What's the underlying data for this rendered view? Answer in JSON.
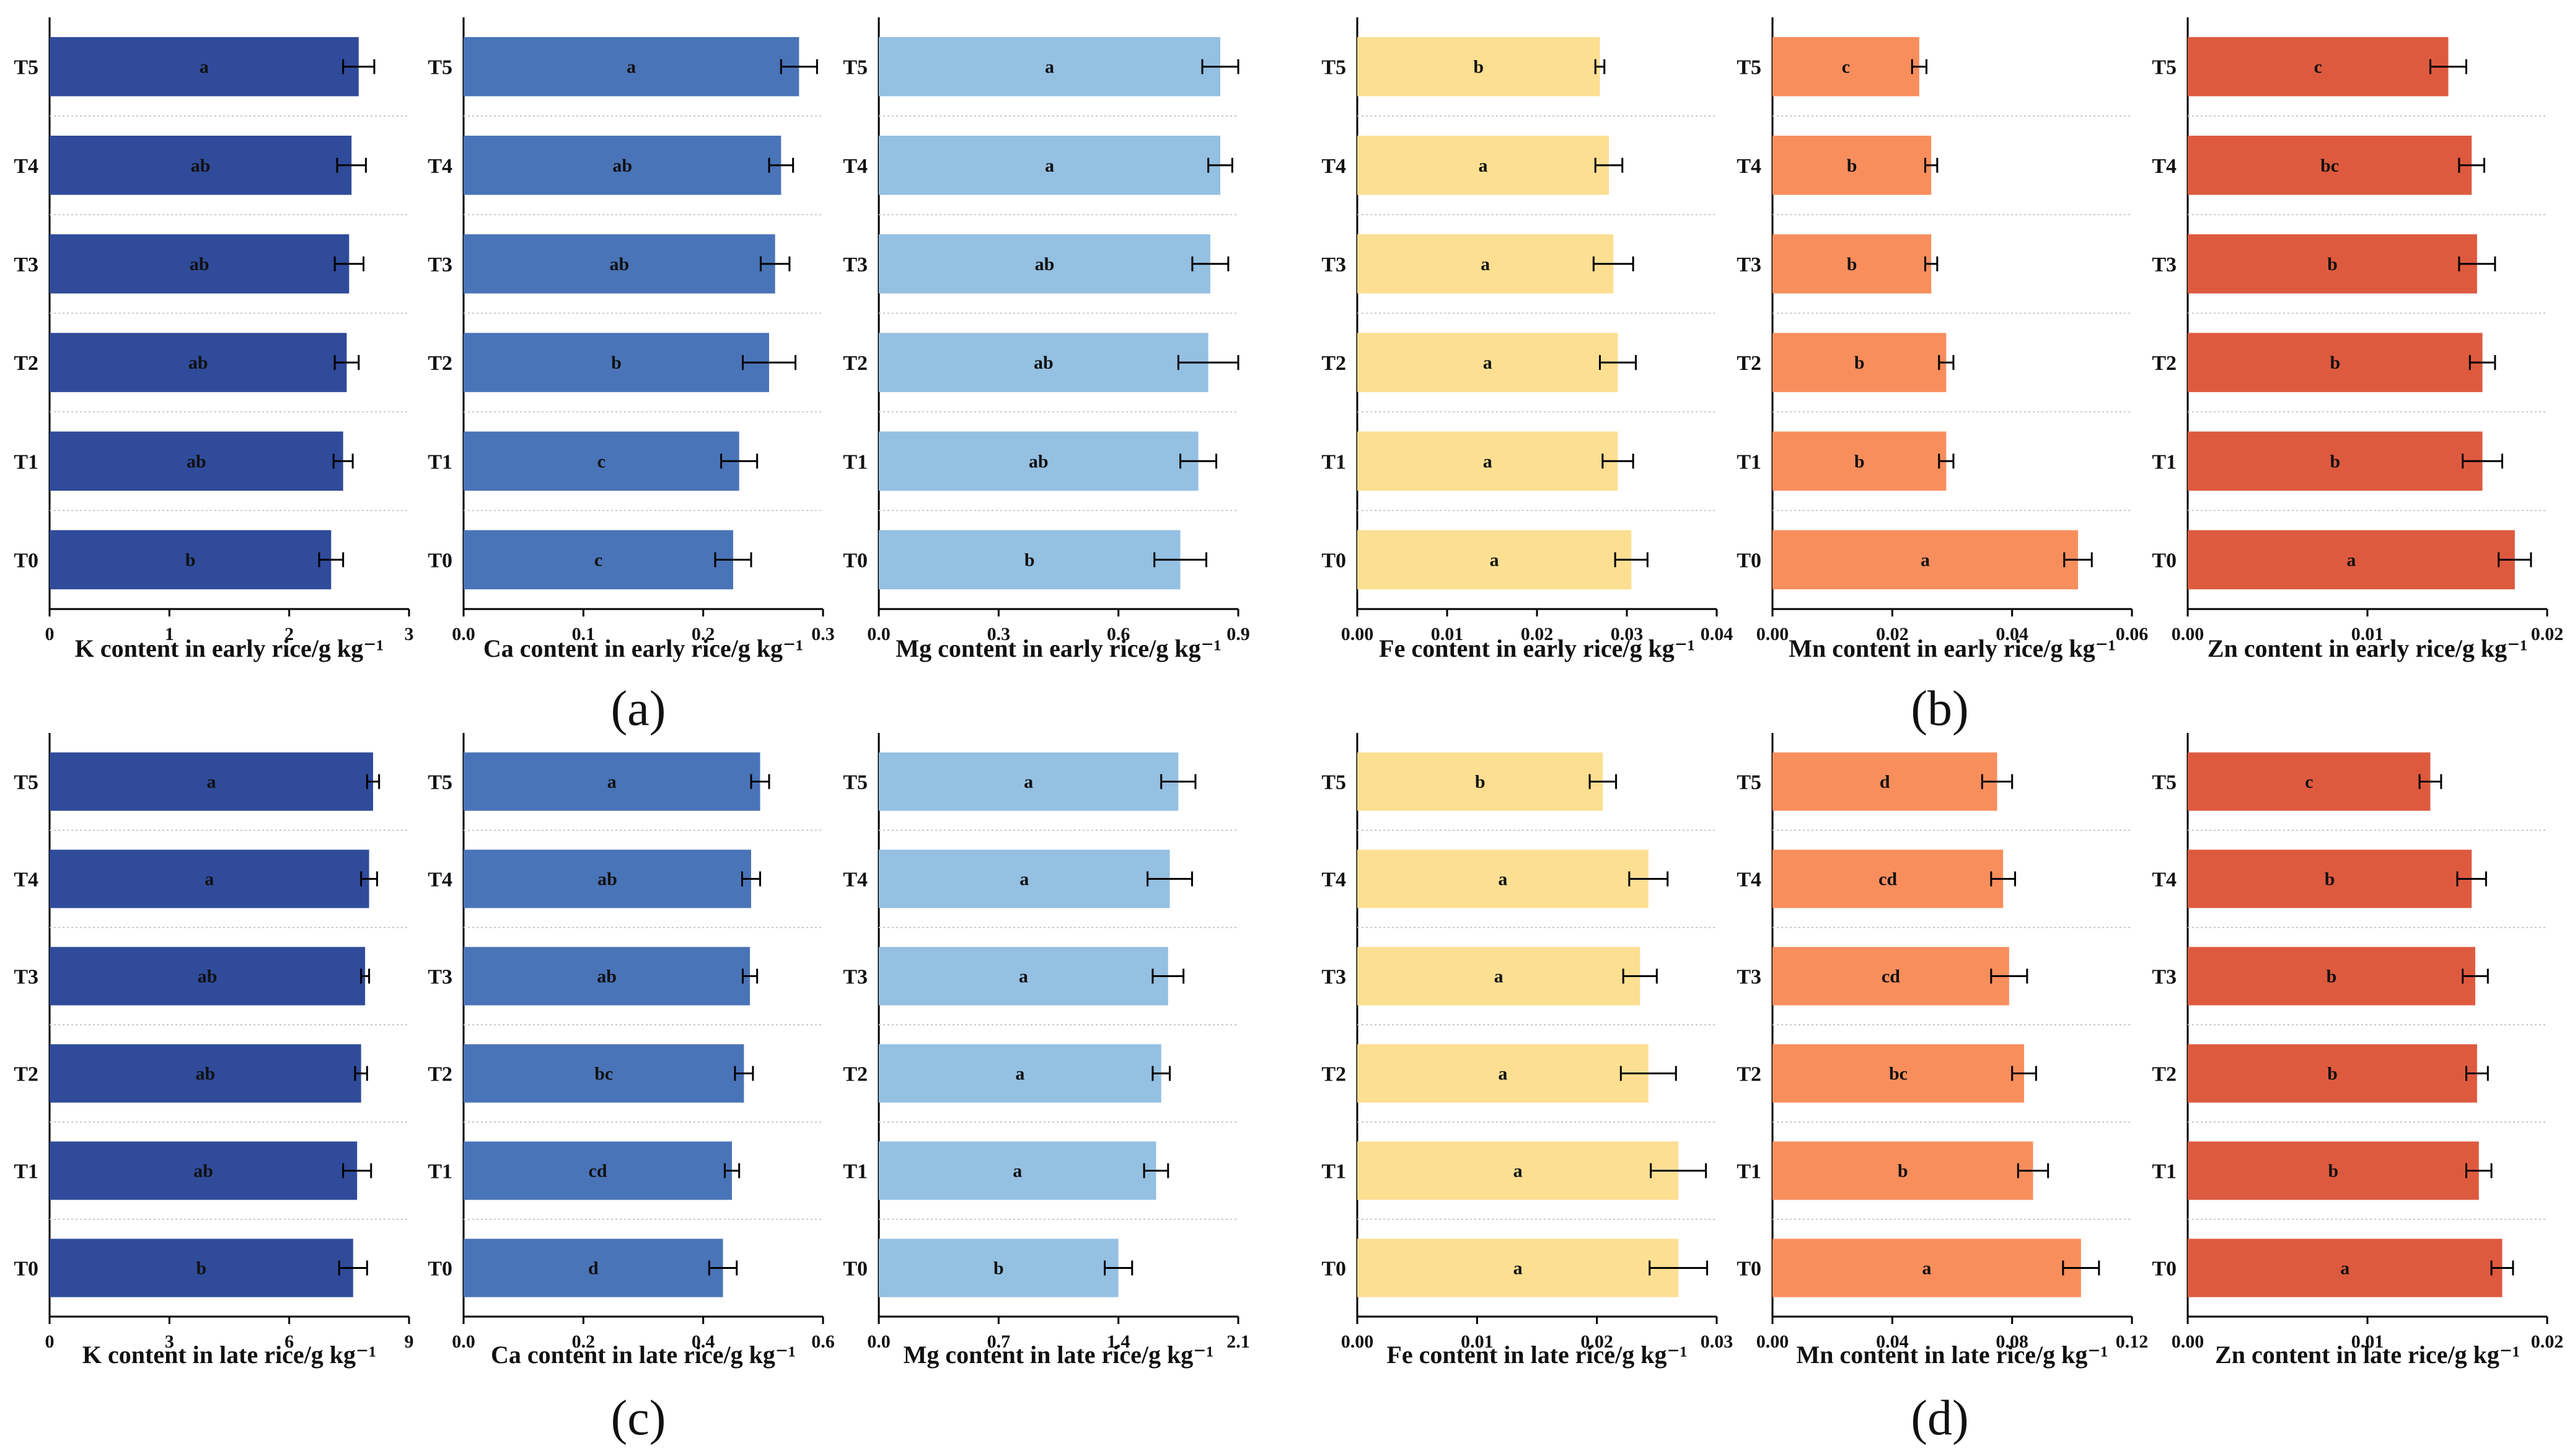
{
  "chart_data": [
    {
      "type": "bar",
      "orientation": "horizontal",
      "panel": "a",
      "title": "",
      "xlabel": "K content in early rice/g kg⁻¹",
      "ylabel": "",
      "categories": [
        "T5",
        "T4",
        "T3",
        "T2",
        "T1",
        "T0"
      ],
      "values": [
        2.58,
        2.52,
        2.5,
        2.48,
        2.45,
        2.35
      ],
      "errors": [
        0.13,
        0.12,
        0.12,
        0.1,
        0.08,
        0.1
      ],
      "letters": [
        "a",
        "ab",
        "ab",
        "ab",
        "ab",
        "b"
      ],
      "xlim": [
        0,
        3
      ],
      "xticks": [
        "0",
        "1",
        "2",
        "3"
      ],
      "color": "#2f4b9a"
    },
    {
      "type": "bar",
      "orientation": "horizontal",
      "panel": "a",
      "title": "",
      "xlabel": "Ca content in early rice/g kg⁻¹",
      "ylabel": "",
      "categories": [
        "T5",
        "T4",
        "T3",
        "T2",
        "T1",
        "T0"
      ],
      "values": [
        0.28,
        0.265,
        0.26,
        0.255,
        0.23,
        0.225
      ],
      "errors": [
        0.015,
        0.01,
        0.012,
        0.022,
        0.015,
        0.015
      ],
      "letters": [
        "a",
        "ab",
        "ab",
        "b",
        "c",
        "c"
      ],
      "xlim": [
        0,
        0.3
      ],
      "xticks": [
        "0.0",
        "0.1",
        "0.2",
        "0.3"
      ],
      "color": "#4a74b8"
    },
    {
      "type": "bar",
      "orientation": "horizontal",
      "panel": "a",
      "title": "",
      "xlabel": "Mg content in early rice/g kg⁻¹",
      "ylabel": "",
      "categories": [
        "T5",
        "T4",
        "T3",
        "T2",
        "T1",
        "T0"
      ],
      "values": [
        0.855,
        0.855,
        0.83,
        0.825,
        0.8,
        0.755
      ],
      "errors": [
        0.045,
        0.03,
        0.045,
        0.075,
        0.045,
        0.065
      ],
      "letters": [
        "a",
        "a",
        "ab",
        "ab",
        "ab",
        "b"
      ],
      "xlim": [
        0,
        0.9
      ],
      "xticks": [
        "0.0",
        "0.3",
        "0.6",
        "0.9"
      ],
      "color": "#94c0e2"
    },
    {
      "type": "bar",
      "orientation": "horizontal",
      "panel": "b",
      "title": "",
      "xlabel": "Fe content in early rice/g kg⁻¹",
      "ylabel": "",
      "categories": [
        "T5",
        "T4",
        "T3",
        "T2",
        "T1",
        "T0"
      ],
      "values": [
        0.027,
        0.028,
        0.0285,
        0.029,
        0.029,
        0.0305
      ],
      "errors": [
        0.0005,
        0.0015,
        0.0022,
        0.002,
        0.0017,
        0.0018
      ],
      "letters": [
        "b",
        "a",
        "a",
        "a",
        "a",
        "a"
      ],
      "xlim": [
        0,
        0.04
      ],
      "xticks": [
        "0.00",
        "0.01",
        "0.02",
        "0.03",
        "0.04"
      ],
      "color": "#fddf92"
    },
    {
      "type": "bar",
      "orientation": "horizontal",
      "panel": "b",
      "title": "",
      "xlabel": "Mn content in early rice/g kg⁻¹",
      "ylabel": "",
      "categories": [
        "T5",
        "T4",
        "T3",
        "T2",
        "T1",
        "T0"
      ],
      "values": [
        0.0245,
        0.0265,
        0.0265,
        0.029,
        0.029,
        0.051
      ],
      "errors": [
        0.0012,
        0.001,
        0.001,
        0.0012,
        0.0012,
        0.0023
      ],
      "letters": [
        "c",
        "b",
        "b",
        "b",
        "b",
        "a"
      ],
      "xlim": [
        0,
        0.06
      ],
      "xticks": [
        "0.00",
        "0.02",
        "0.04",
        "0.06"
      ],
      "color": "#f98e5d"
    },
    {
      "type": "bar",
      "orientation": "horizontal",
      "panel": "b",
      "title": "",
      "xlabel": "Zn content in early rice/g kg⁻¹",
      "ylabel": "",
      "categories": [
        "T5",
        "T4",
        "T3",
        "T2",
        "T1",
        "T0"
      ],
      "values": [
        0.0145,
        0.0158,
        0.0161,
        0.0164,
        0.0164,
        0.0182
      ],
      "errors": [
        0.001,
        0.0007,
        0.001,
        0.0007,
        0.0011,
        0.0009
      ],
      "letters": [
        "c",
        "bc",
        "b",
        "b",
        "b",
        "a"
      ],
      "xlim": [
        0,
        0.02
      ],
      "xticks": [
        "0.00",
        "0.01",
        "0.02"
      ],
      "color": "#de5a3f"
    },
    {
      "type": "bar",
      "orientation": "horizontal",
      "panel": "c",
      "title": "",
      "xlabel": "K content in late rice/g kg⁻¹",
      "ylabel": "",
      "categories": [
        "T5",
        "T4",
        "T3",
        "T2",
        "T1",
        "T0"
      ],
      "values": [
        8.1,
        8.0,
        7.9,
        7.8,
        7.7,
        7.6
      ],
      "errors": [
        0.15,
        0.2,
        0.1,
        0.15,
        0.35,
        0.35
      ],
      "letters": [
        "a",
        "a",
        "ab",
        "ab",
        "ab",
        "b"
      ],
      "xlim": [
        0,
        9
      ],
      "xticks": [
        "0",
        "3",
        "6",
        "9"
      ],
      "color": "#2f4b9a"
    },
    {
      "type": "bar",
      "orientation": "horizontal",
      "panel": "c",
      "title": "",
      "xlabel": "Ca content in late rice/g kg⁻¹",
      "ylabel": "",
      "categories": [
        "T5",
        "T4",
        "T3",
        "T2",
        "T1",
        "T0"
      ],
      "values": [
        0.495,
        0.48,
        0.478,
        0.468,
        0.448,
        0.433
      ],
      "errors": [
        0.015,
        0.015,
        0.012,
        0.015,
        0.012,
        0.023
      ],
      "letters": [
        "a",
        "ab",
        "ab",
        "bc",
        "cd",
        "d"
      ],
      "xlim": [
        0,
        0.6
      ],
      "xticks": [
        "0.0",
        "0.2",
        "0.4",
        "0.6"
      ],
      "color": "#4a74b8"
    },
    {
      "type": "bar",
      "orientation": "horizontal",
      "panel": "c",
      "title": "",
      "xlabel": "Mg content in late rice/g kg⁻¹",
      "ylabel": "",
      "categories": [
        "T5",
        "T4",
        "T3",
        "T2",
        "T1",
        "T0"
      ],
      "values": [
        1.75,
        1.7,
        1.69,
        1.65,
        1.62,
        1.4
      ],
      "errors": [
        0.1,
        0.13,
        0.09,
        0.05,
        0.07,
        0.08
      ],
      "letters": [
        "a",
        "a",
        "a",
        "a",
        "a",
        "b"
      ],
      "xlim": [
        0,
        2.1
      ],
      "xticks": [
        "0.0",
        "0.7",
        "1.4",
        "2.1"
      ],
      "color": "#94c0e2"
    },
    {
      "type": "bar",
      "orientation": "horizontal",
      "panel": "d",
      "title": "",
      "xlabel": "Fe content in late rice/g kg⁻¹",
      "ylabel": "",
      "categories": [
        "T5",
        "T4",
        "T3",
        "T2",
        "T1",
        "T0"
      ],
      "values": [
        0.0205,
        0.0243,
        0.0236,
        0.0243,
        0.0268,
        0.0268
      ],
      "errors": [
        0.0011,
        0.0016,
        0.0014,
        0.0023,
        0.0023,
        0.0024
      ],
      "letters": [
        "b",
        "a",
        "a",
        "a",
        "a",
        "a"
      ],
      "xlim": [
        0,
        0.03
      ],
      "xticks": [
        "0.00",
        "0.01",
        "0.02",
        "0.03"
      ],
      "color": "#fddf92"
    },
    {
      "type": "bar",
      "orientation": "horizontal",
      "panel": "d",
      "title": "",
      "xlabel": "Mn content in late rice/g kg⁻¹",
      "ylabel": "",
      "categories": [
        "T5",
        "T4",
        "T3",
        "T2",
        "T1",
        "T0"
      ],
      "values": [
        0.075,
        0.077,
        0.079,
        0.084,
        0.087,
        0.103
      ],
      "errors": [
        0.005,
        0.004,
        0.006,
        0.004,
        0.005,
        0.006
      ],
      "letters": [
        "d",
        "cd",
        "cd",
        "bc",
        "b",
        "a"
      ],
      "xlim": [
        0,
        0.12
      ],
      "xticks": [
        "0.00",
        "0.04",
        "0.08",
        "0.12"
      ],
      "color": "#f98e5d"
    },
    {
      "type": "bar",
      "orientation": "horizontal",
      "panel": "d",
      "title": "",
      "xlabel": "Zn content in late rice/g kg⁻¹",
      "ylabel": "",
      "categories": [
        "T5",
        "T4",
        "T3",
        "T2",
        "T1",
        "T0"
      ],
      "values": [
        0.0135,
        0.0158,
        0.016,
        0.0161,
        0.0162,
        0.0175
      ],
      "errors": [
        0.0006,
        0.0008,
        0.0007,
        0.0006,
        0.0007,
        0.0006
      ],
      "letters": [
        "c",
        "b",
        "b",
        "b",
        "b",
        "a"
      ],
      "xlim": [
        0,
        0.02
      ],
      "xticks": [
        "0.00",
        "0.01",
        "0.02"
      ],
      "color": "#de5a3f"
    }
  ],
  "panel_labels": [
    "(a)",
    "(b)",
    "(c)",
    "(d)"
  ]
}
